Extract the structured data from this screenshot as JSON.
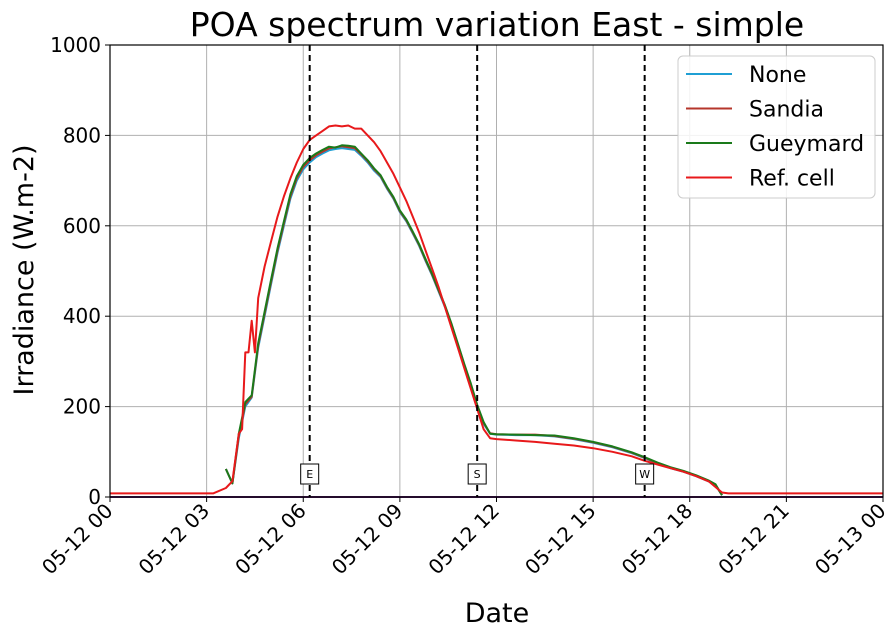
{
  "chart_data": {
    "type": "line",
    "title": "POA spectrum variation East - simple",
    "xlabel": "Date",
    "ylabel": "Irradiance (W.m-2)",
    "xlim": [
      "05-12 00:00",
      "05-13 00:00"
    ],
    "ylim": [
      0,
      1000
    ],
    "x_tick_labels": [
      "05-12 00",
      "05-12 03",
      "05-12 06",
      "05-12 09",
      "05-12 12",
      "05-12 15",
      "05-12 18",
      "05-12 21",
      "05-13 00"
    ],
    "y_tick_labels": [
      "0",
      "200",
      "400",
      "600",
      "800",
      "1000"
    ],
    "grid": true,
    "legend_position": "top-right",
    "vertical_markers": [
      {
        "label": "E",
        "time": "06:12"
      },
      {
        "label": "S",
        "time": "11:24"
      },
      {
        "label": "W",
        "time": "16:36"
      }
    ],
    "series": [
      {
        "name": "None",
        "color": "#1f9fd4",
        "points": [
          [
            "03:36",
            62
          ],
          [
            "03:48",
            30
          ],
          [
            "04:00",
            130
          ],
          [
            "04:12",
            200
          ],
          [
            "04:24",
            220
          ],
          [
            "04:36",
            330
          ],
          [
            "04:48",
            400
          ],
          [
            "05:00",
            470
          ],
          [
            "05:12",
            540
          ],
          [
            "05:24",
            600
          ],
          [
            "05:36",
            660
          ],
          [
            "05:48",
            700
          ],
          [
            "06:00",
            725
          ],
          [
            "06:12",
            740
          ],
          [
            "06:24",
            752
          ],
          [
            "06:36",
            760
          ],
          [
            "06:48",
            767
          ],
          [
            "07:00",
            770
          ],
          [
            "07:12",
            772
          ],
          [
            "07:24",
            770
          ],
          [
            "07:36",
            768
          ],
          [
            "07:48",
            755
          ],
          [
            "08:00",
            740
          ],
          [
            "08:12",
            722
          ],
          [
            "08:24",
            708
          ],
          [
            "08:36",
            682
          ],
          [
            "08:48",
            660
          ],
          [
            "09:00",
            630
          ],
          [
            "09:12",
            610
          ],
          [
            "09:24",
            583
          ],
          [
            "09:36",
            555
          ],
          [
            "09:48",
            522
          ],
          [
            "10:00",
            490
          ],
          [
            "10:12",
            455
          ],
          [
            "10:24",
            420
          ],
          [
            "10:36",
            380
          ],
          [
            "10:48",
            335
          ],
          [
            "11:00",
            290
          ],
          [
            "11:12",
            248
          ],
          [
            "11:24",
            200
          ],
          [
            "11:36",
            162
          ],
          [
            "11:48",
            140
          ],
          [
            "12:00",
            138
          ],
          [
            "12:36",
            137
          ],
          [
            "13:12",
            137
          ],
          [
            "13:48",
            134
          ],
          [
            "14:24",
            128
          ],
          [
            "15:00",
            120
          ],
          [
            "15:36",
            110
          ],
          [
            "16:12",
            97
          ],
          [
            "16:36",
            86
          ],
          [
            "17:00",
            74
          ],
          [
            "17:24",
            64
          ],
          [
            "17:48",
            56
          ],
          [
            "18:12",
            46
          ],
          [
            "18:36",
            34
          ],
          [
            "18:48",
            26
          ],
          [
            "19:00",
            4
          ]
        ]
      },
      {
        "name": "Sandia",
        "color": "#b5362b",
        "points": [
          [
            "03:36",
            62
          ],
          [
            "03:48",
            30
          ],
          [
            "04:00",
            135
          ],
          [
            "04:12",
            205
          ],
          [
            "04:24",
            222
          ],
          [
            "04:36",
            335
          ],
          [
            "04:48",
            405
          ],
          [
            "05:00",
            475
          ],
          [
            "05:12",
            545
          ],
          [
            "05:24",
            605
          ],
          [
            "05:36",
            665
          ],
          [
            "05:48",
            705
          ],
          [
            "06:00",
            730
          ],
          [
            "06:12",
            745
          ],
          [
            "06:24",
            756
          ],
          [
            "06:36",
            764
          ],
          [
            "06:48",
            771
          ],
          [
            "07:00",
            774
          ],
          [
            "07:12",
            776
          ],
          [
            "07:24",
            774
          ],
          [
            "07:36",
            772
          ],
          [
            "07:48",
            758
          ],
          [
            "08:00",
            743
          ],
          [
            "08:12",
            725
          ],
          [
            "08:24",
            710
          ],
          [
            "08:36",
            684
          ],
          [
            "08:48",
            662
          ],
          [
            "09:00",
            632
          ],
          [
            "09:12",
            612
          ],
          [
            "09:24",
            585
          ],
          [
            "09:36",
            557
          ],
          [
            "09:48",
            524
          ],
          [
            "10:00",
            492
          ],
          [
            "10:12",
            457
          ],
          [
            "10:24",
            422
          ],
          [
            "10:36",
            382
          ],
          [
            "10:48",
            337
          ],
          [
            "11:00",
            292
          ],
          [
            "11:12",
            250
          ],
          [
            "11:24",
            202
          ],
          [
            "11:36",
            164
          ],
          [
            "11:48",
            141
          ],
          [
            "12:00",
            139
          ],
          [
            "12:36",
            138
          ],
          [
            "13:12",
            138
          ],
          [
            "13:48",
            135
          ],
          [
            "14:24",
            129
          ],
          [
            "15:00",
            121
          ],
          [
            "15:36",
            111
          ],
          [
            "16:12",
            98
          ],
          [
            "16:36",
            87
          ],
          [
            "17:00",
            75
          ],
          [
            "17:24",
            65
          ],
          [
            "17:48",
            57
          ],
          [
            "18:12",
            47
          ],
          [
            "18:36",
            35
          ],
          [
            "18:48",
            27
          ],
          [
            "19:00",
            4
          ]
        ]
      },
      {
        "name": "Gueymard",
        "color": "#1a7a1a",
        "points": [
          [
            "03:36",
            62
          ],
          [
            "03:48",
            30
          ],
          [
            "04:00",
            140
          ],
          [
            "04:12",
            210
          ],
          [
            "04:24",
            225
          ],
          [
            "04:36",
            340
          ],
          [
            "04:48",
            410
          ],
          [
            "05:00",
            480
          ],
          [
            "05:12",
            550
          ],
          [
            "05:24",
            610
          ],
          [
            "05:36",
            670
          ],
          [
            "05:48",
            710
          ],
          [
            "06:00",
            735
          ],
          [
            "06:12",
            750
          ],
          [
            "06:24",
            760
          ],
          [
            "06:36",
            768
          ],
          [
            "06:48",
            775
          ],
          [
            "07:00",
            773
          ],
          [
            "07:12",
            778
          ],
          [
            "07:24",
            777
          ],
          [
            "07:36",
            775
          ],
          [
            "07:48",
            760
          ],
          [
            "08:00",
            745
          ],
          [
            "08:12",
            727
          ],
          [
            "08:24",
            712
          ],
          [
            "08:36",
            686
          ],
          [
            "08:48",
            664
          ],
          [
            "09:00",
            634
          ],
          [
            "09:12",
            614
          ],
          [
            "09:24",
            587
          ],
          [
            "09:36",
            559
          ],
          [
            "09:48",
            526
          ],
          [
            "10:00",
            494
          ],
          [
            "10:12",
            459
          ],
          [
            "10:24",
            424
          ],
          [
            "10:36",
            384
          ],
          [
            "10:48",
            339
          ],
          [
            "11:00",
            294
          ],
          [
            "11:12",
            252
          ],
          [
            "11:24",
            204
          ],
          [
            "11:36",
            166
          ],
          [
            "11:48",
            140
          ],
          [
            "12:00",
            139
          ],
          [
            "12:36",
            138
          ],
          [
            "13:12",
            137
          ],
          [
            "13:48",
            136
          ],
          [
            "14:24",
            130
          ],
          [
            "15:00",
            122
          ],
          [
            "15:36",
            112
          ],
          [
            "16:12",
            99
          ],
          [
            "16:36",
            88
          ],
          [
            "17:00",
            76
          ],
          [
            "17:24",
            66
          ],
          [
            "17:48",
            58
          ],
          [
            "18:12",
            48
          ],
          [
            "18:36",
            36
          ],
          [
            "18:48",
            28
          ],
          [
            "19:00",
            4
          ]
        ]
      },
      {
        "name": "Ref. cell",
        "color": "#e8191b",
        "points": [
          [
            "00:00",
            8
          ],
          [
            "03:12",
            8
          ],
          [
            "03:36",
            20
          ],
          [
            "03:48",
            35
          ],
          [
            "04:00",
            140
          ],
          [
            "04:06",
            150
          ],
          [
            "04:12",
            320
          ],
          [
            "04:18",
            320
          ],
          [
            "04:24",
            390
          ],
          [
            "04:30",
            320
          ],
          [
            "04:36",
            440
          ],
          [
            "04:48",
            510
          ],
          [
            "05:00",
            565
          ],
          [
            "05:12",
            620
          ],
          [
            "05:24",
            665
          ],
          [
            "05:36",
            705
          ],
          [
            "05:48",
            740
          ],
          [
            "06:00",
            770
          ],
          [
            "06:12",
            790
          ],
          [
            "06:24",
            800
          ],
          [
            "06:36",
            810
          ],
          [
            "06:48",
            820
          ],
          [
            "07:00",
            822
          ],
          [
            "07:12",
            820
          ],
          [
            "07:24",
            822
          ],
          [
            "07:36",
            815
          ],
          [
            "07:48",
            815
          ],
          [
            "08:00",
            800
          ],
          [
            "08:12",
            785
          ],
          [
            "08:24",
            765
          ],
          [
            "08:36",
            740
          ],
          [
            "08:48",
            715
          ],
          [
            "09:00",
            685
          ],
          [
            "09:12",
            655
          ],
          [
            "09:24",
            620
          ],
          [
            "09:36",
            585
          ],
          [
            "09:48",
            545
          ],
          [
            "10:00",
            505
          ],
          [
            "10:12",
            465
          ],
          [
            "10:24",
            420
          ],
          [
            "10:36",
            375
          ],
          [
            "10:48",
            330
          ],
          [
            "11:00",
            285
          ],
          [
            "11:12",
            240
          ],
          [
            "11:24",
            195
          ],
          [
            "11:36",
            150
          ],
          [
            "11:48",
            130
          ],
          [
            "12:00",
            128
          ],
          [
            "12:36",
            125
          ],
          [
            "13:12",
            122
          ],
          [
            "13:48",
            118
          ],
          [
            "14:24",
            114
          ],
          [
            "15:00",
            108
          ],
          [
            "15:36",
            100
          ],
          [
            "16:12",
            90
          ],
          [
            "16:36",
            80
          ],
          [
            "17:00",
            72
          ],
          [
            "17:24",
            64
          ],
          [
            "17:48",
            56
          ],
          [
            "18:12",
            46
          ],
          [
            "18:36",
            34
          ],
          [
            "19:00",
            10
          ],
          [
            "19:12",
            8
          ],
          [
            "24:00",
            8
          ]
        ]
      }
    ]
  }
}
